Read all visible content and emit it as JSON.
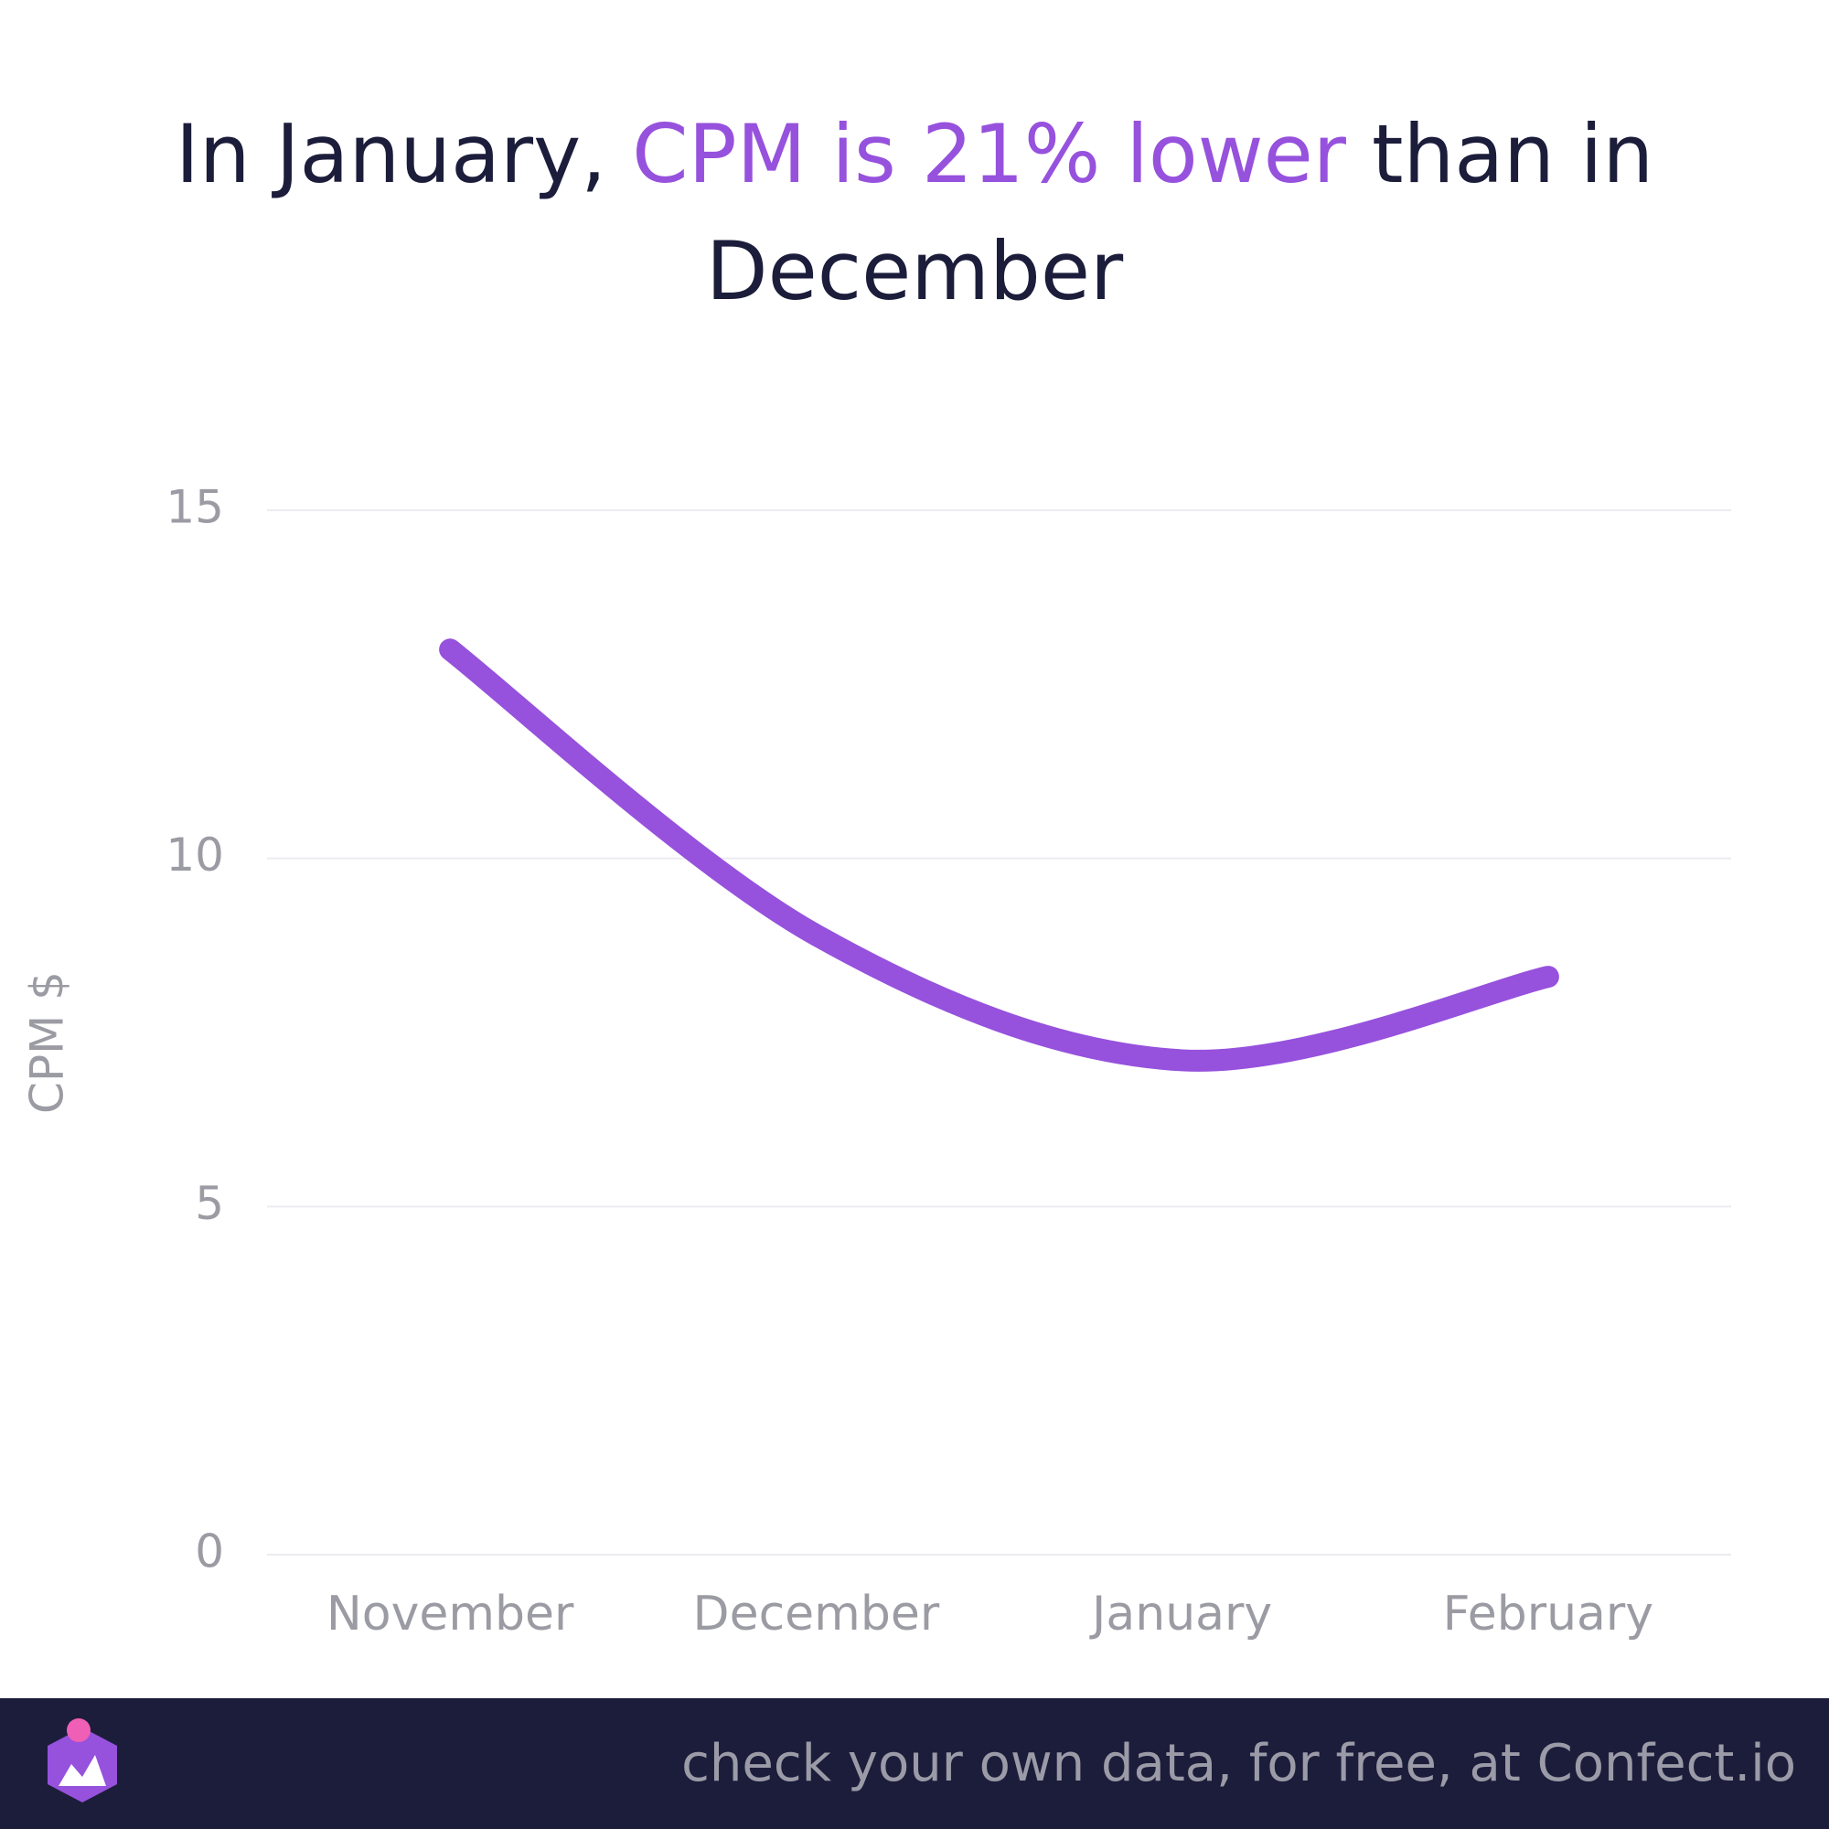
{
  "title": {
    "prefix": "In January, ",
    "highlight": "CPM is 21% lower",
    "suffix": " than in December"
  },
  "footer": {
    "text": "check your own data, for free, at Confect.io",
    "logo_icon": "confect-logo-icon"
  },
  "colors": {
    "line": "#9651dd",
    "title": "#1c1d3b",
    "highlight": "#9651dd",
    "axis_text": "#9b9ba3",
    "grid": "#ececf0",
    "footer_bg": "#1c1d3b"
  },
  "chart_data": {
    "type": "line",
    "categories": [
      "November",
      "December",
      "January",
      "February"
    ],
    "series": [
      {
        "values": [
          13.0,
          8.9,
          7.1,
          8.3
        ]
      }
    ],
    "ylabel": "CPM $",
    "xlabel": "",
    "ylim": [
      0,
      15
    ],
    "yticks": [
      0,
      5,
      10,
      15
    ],
    "grid": true,
    "smooth": true
  }
}
